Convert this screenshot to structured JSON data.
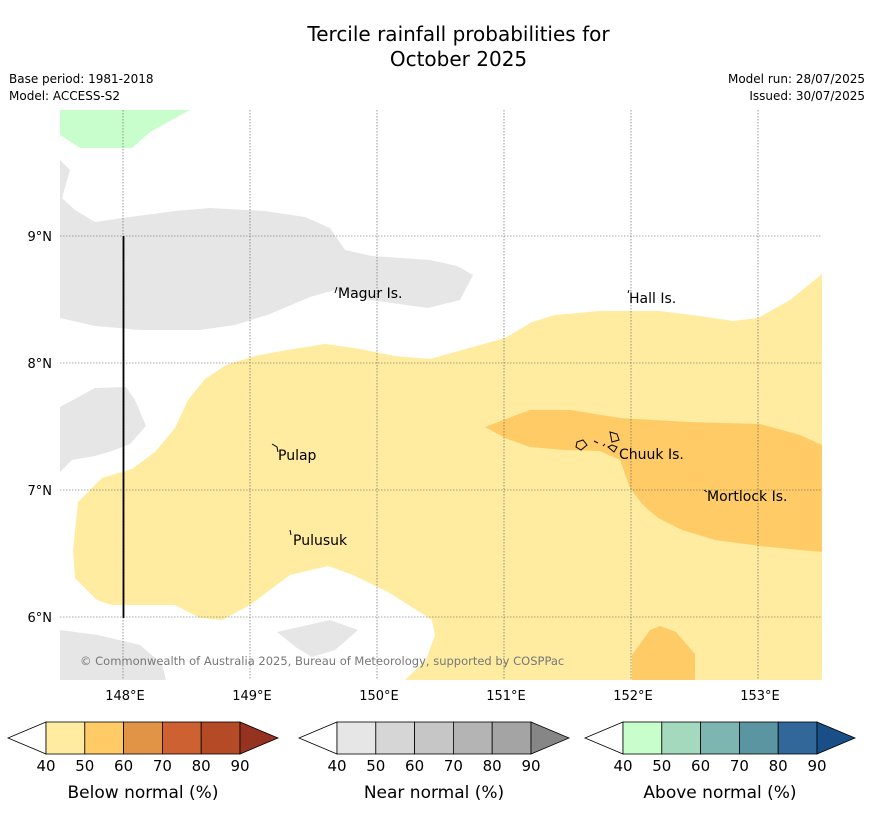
{
  "title": {
    "line1": "Tercile rainfall probabilities for",
    "line2": "October 2025"
  },
  "meta": {
    "base_period": "Base period: 1981-2018",
    "model": "Model: ACCESS-S2",
    "model_run": "Model run: 28/07/2025",
    "issued": "Issued: 30/07/2025"
  },
  "map": {
    "lon_labels": [
      "148°E",
      "149°E",
      "150°E",
      "151°E",
      "152°E",
      "153°E"
    ],
    "lat_labels": [
      "9°N",
      "8°N",
      "7°N",
      "6°N"
    ],
    "places": {
      "magur": "Magur Is.",
      "hall": "Hall Is.",
      "pulap": "Pulap",
      "chuuk": "Chuuk Is.",
      "mortlock": "Mortlock Is.",
      "pulusuk": "Pulusuk"
    },
    "copyright": "© Commonwealth of Australia 2025, Bureau of Meteorology, supported by COSPPac",
    "colors": {
      "below_50": "#ffeca0",
      "below_60": "#fecb66",
      "near_50": "#e6e6e6",
      "above_50": "#c8fecc"
    }
  },
  "colorbars": {
    "ticks": [
      "40",
      "50",
      "60",
      "70",
      "80",
      "90"
    ],
    "below": {
      "label": "Below normal (%)",
      "colors": [
        "#ffeca0",
        "#fecb66",
        "#e29446",
        "#cd6131",
        "#b44a26",
        "#953220"
      ]
    },
    "near": {
      "label": "Near normal (%)",
      "colors": [
        "#e6e6e6",
        "#d6d6d6",
        "#c6c6c6",
        "#b4b4b4",
        "#a4a4a4",
        "#868686"
      ]
    },
    "above": {
      "label": "Above normal (%)",
      "colors": [
        "#c8fecc",
        "#a5d9be",
        "#7db5b1",
        "#5b95a1",
        "#326799",
        "#194f86"
      ]
    }
  }
}
